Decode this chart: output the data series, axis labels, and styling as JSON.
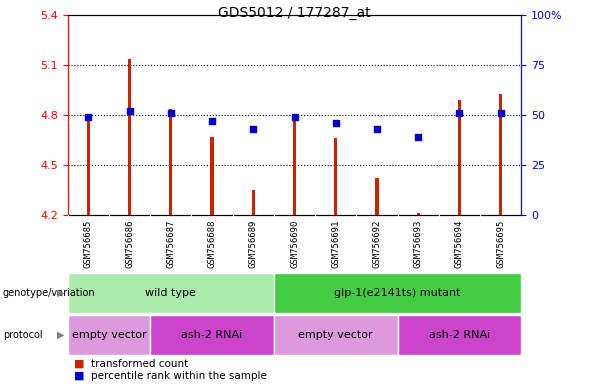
{
  "title": "GDS5012 / 177287_at",
  "samples": [
    "GSM756685",
    "GSM756686",
    "GSM756687",
    "GSM756688",
    "GSM756689",
    "GSM756690",
    "GSM756691",
    "GSM756692",
    "GSM756693",
    "GSM756694",
    "GSM756695"
  ],
  "bar_values": [
    4.79,
    5.14,
    4.84,
    4.67,
    4.35,
    4.79,
    4.66,
    4.42,
    4.21,
    4.89,
    4.93
  ],
  "dot_percentiles": [
    49,
    52,
    51,
    47,
    43,
    49,
    46,
    43,
    39,
    51,
    51
  ],
  "ylim_left": [
    4.2,
    5.4
  ],
  "ylim_right": [
    0,
    100
  ],
  "yticks_left": [
    4.2,
    4.5,
    4.8,
    5.1,
    5.4
  ],
  "yticks_right": [
    0,
    25,
    50,
    75,
    100
  ],
  "bar_color": "#cc2200",
  "dot_color": "#0000cc",
  "bar_bottom": 4.2,
  "grid_values": [
    4.5,
    4.8,
    5.1
  ],
  "genotype_groups": [
    {
      "label": "wild type",
      "start": 0,
      "end": 4,
      "color": "#aaeaaa"
    },
    {
      "label": "glp-1(e2141ts) mutant",
      "start": 5,
      "end": 10,
      "color": "#44cc44"
    }
  ],
  "protocol_groups": [
    {
      "label": "empty vector",
      "start": 0,
      "end": 1,
      "color": "#dd99dd"
    },
    {
      "label": "ash-2 RNAi",
      "start": 2,
      "end": 4,
      "color": "#cc44cc"
    },
    {
      "label": "empty vector",
      "start": 5,
      "end": 7,
      "color": "#dd99dd"
    },
    {
      "label": "ash-2 RNAi",
      "start": 8,
      "end": 10,
      "color": "#cc44cc"
    }
  ],
  "bg_color": "#ffffff",
  "tick_area_color": "#c8c8c8"
}
